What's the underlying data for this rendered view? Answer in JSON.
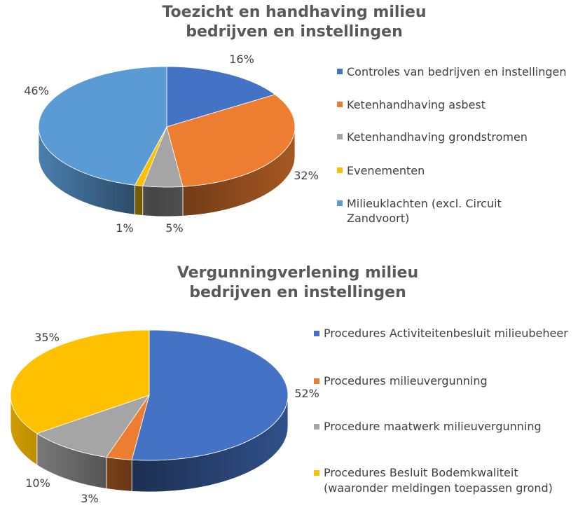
{
  "chart_data": [
    {
      "type": "pie",
      "three_d": true,
      "title_lines": [
        "Toezicht en handhaving milieu",
        "bedrijven en instellingen"
      ],
      "categories": [
        "Controles van bedrijven en instellingen",
        "Ketenhandhaving asbest",
        "Ketenhandhaving grondstromen",
        "Evenementen",
        "Milieuklachten (excl. Circuit Zandvoort)"
      ],
      "values": [
        16,
        32,
        5,
        1,
        46
      ],
      "data_labels": [
        "16%",
        "32%",
        "5%",
        "1%",
        "46%"
      ],
      "colors": [
        "#4472C4",
        "#ED7D31",
        "#A5A5A5",
        "#FFC000",
        "#5B9BD5"
      ],
      "legend_position": "right"
    },
    {
      "type": "pie",
      "three_d": true,
      "title_lines": [
        "Vergunningverlening milieu",
        "bedrijven en instellingen"
      ],
      "categories": [
        "Procedures Activiteitenbesluit milieubeheer",
        "Procedures milieuvergunning",
        "Procedure maatwerk milieuvergunning",
        "Procedures Besluit Bodemkwaliteit (waaronder meldingen toepassen grond)"
      ],
      "values": [
        52,
        3,
        10,
        35
      ],
      "data_labels": [
        "52%",
        "3%",
        "10%",
        "35%"
      ],
      "colors": [
        "#4472C4",
        "#ED7D31",
        "#A5A5A5",
        "#FFC000"
      ],
      "legend_position": "right"
    }
  ]
}
